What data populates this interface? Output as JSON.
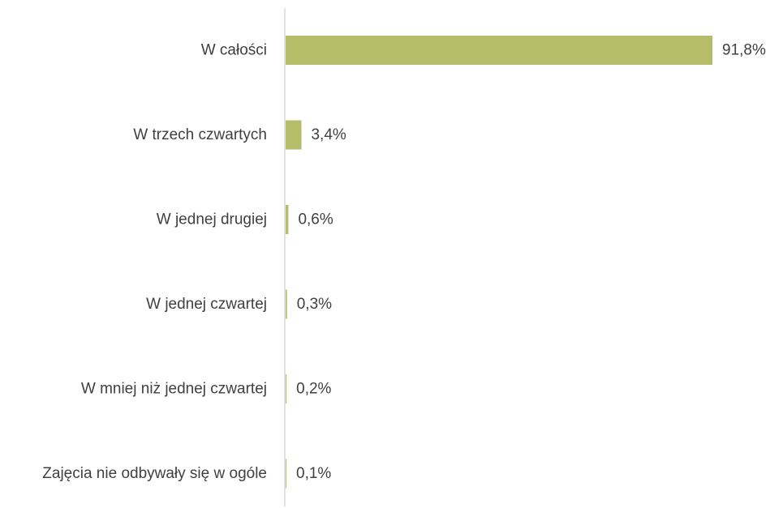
{
  "chart_data": {
    "type": "bar",
    "orientation": "horizontal",
    "categories": [
      "W całości",
      "W trzech czwartych",
      "W jednej drugiej",
      "W jednej czwartej",
      "W mniej niż jednej czwartej",
      "Zajęcia nie odbywały się w ogóle"
    ],
    "values": [
      91.8,
      3.4,
      0.6,
      0.3,
      0.2,
      0.1
    ],
    "value_labels": [
      "91,8%",
      "3,4%",
      "0,6%",
      "0,3%",
      "0,2%",
      "0,1%"
    ],
    "title": "",
    "xlabel": "",
    "ylabel": "",
    "xlim": [
      0,
      91.8
    ],
    "grid": false,
    "legend": "none",
    "bar_color": "#b5bd68",
    "axis_color": "#d9d9d9",
    "text_color": "#404040"
  }
}
